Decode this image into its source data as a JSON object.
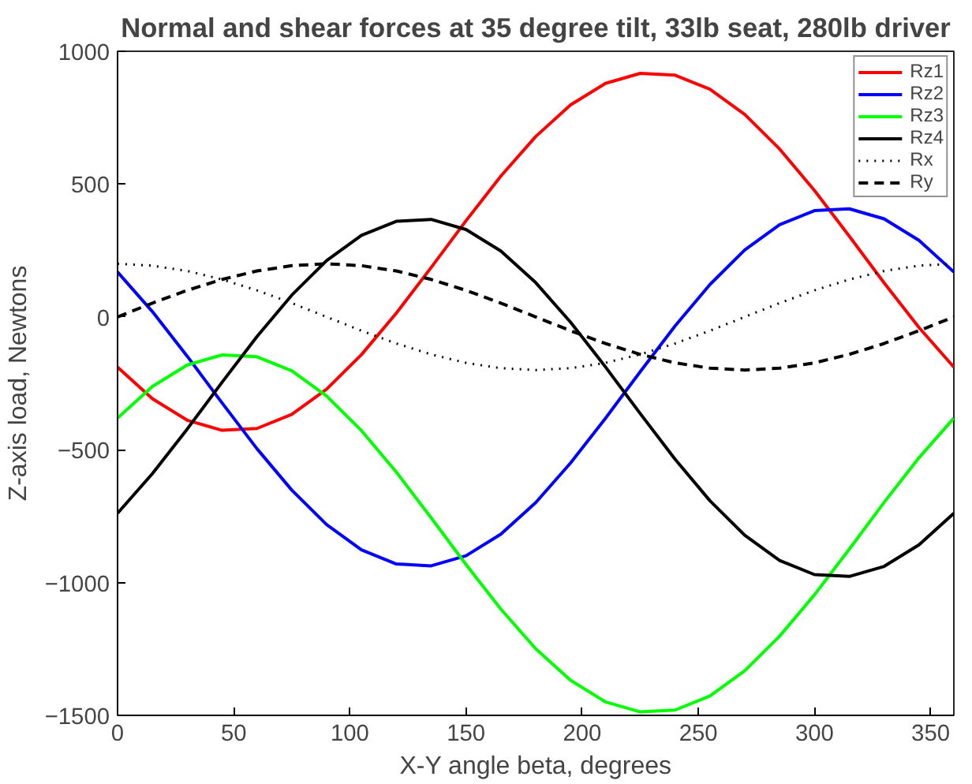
{
  "chart_data": {
    "type": "line",
    "title": "Normal and shear forces at 35 degree tilt, 33lb seat, 280lb driver",
    "xlabel": "X-Y angle beta, degrees",
    "ylabel": "Z-axis load, Newtons",
    "x": [
      0,
      15,
      30,
      45,
      60,
      75,
      90,
      105,
      120,
      135,
      150,
      165,
      180,
      195,
      210,
      225,
      240,
      255,
      270,
      285,
      300,
      315,
      330,
      345,
      360
    ],
    "xlim": [
      0,
      360
    ],
    "xticks": [
      0,
      50,
      100,
      150,
      200,
      250,
      300,
      350
    ],
    "ylim": [
      -1500,
      1000
    ],
    "yticks": [
      -1500,
      -1000,
      -500,
      0,
      500,
      1000
    ],
    "grid": false,
    "legend": "top right",
    "marker": "none",
    "series": [
      {
        "name": "Rz1",
        "color": "#ff0000",
        "line_style": "solid",
        "values": [
          -189,
          -308,
          -389,
          -427,
          -420,
          -367,
          -272,
          -142,
          14,
          186,
          362,
          530,
          679,
          798,
          879,
          917,
          910,
          857,
          762,
          632,
          476,
          304,
          128,
          -40,
          -189
        ]
      },
      {
        "name": "Rz2",
        "color": "#0000ff",
        "line_style": "solid",
        "values": [
          169,
          20,
          -148,
          -324,
          -496,
          -652,
          -782,
          -877,
          -930,
          -937,
          -899,
          -818,
          -699,
          -550,
          -382,
          -206,
          -34,
          122,
          252,
          347,
          400,
          407,
          369,
          288,
          169
        ]
      },
      {
        "name": "Rz3",
        "color": "#00ff00",
        "line_style": "solid",
        "values": [
          -381,
          -262,
          -181,
          -143,
          -150,
          -203,
          -298,
          -428,
          -584,
          -756,
          -932,
          -1100,
          -1249,
          -1368,
          -1449,
          -1487,
          -1480,
          -1427,
          -1332,
          -1202,
          -1046,
          -874,
          -698,
          -530,
          -381
        ]
      },
      {
        "name": "Rz4",
        "color": "#000000",
        "line_style": "solid",
        "values": [
          -739,
          -590,
          -422,
          -246,
          -74,
          82,
          212,
          307,
          360,
          367,
          329,
          248,
          129,
          -20,
          -188,
          -364,
          -536,
          -692,
          -822,
          -917,
          -970,
          -977,
          -939,
          -858,
          -739
        ]
      },
      {
        "name": "Rx",
        "color": "#000000",
        "line_style": "dotted",
        "values": [
          200,
          193,
          173,
          141,
          100,
          52,
          0,
          -52,
          -100,
          -141,
          -173,
          -193,
          -200,
          -193,
          -173,
          -141,
          -100,
          -52,
          0,
          52,
          100,
          141,
          173,
          193,
          200
        ]
      },
      {
        "name": "Ry",
        "color": "#000000",
        "line_style": "dashed",
        "values": [
          0,
          52,
          100,
          141,
          173,
          193,
          200,
          193,
          173,
          141,
          100,
          52,
          0,
          -52,
          -100,
          -141,
          -173,
          -193,
          -200,
          -193,
          -173,
          -141,
          -100,
          -52,
          0
        ]
      }
    ]
  }
}
